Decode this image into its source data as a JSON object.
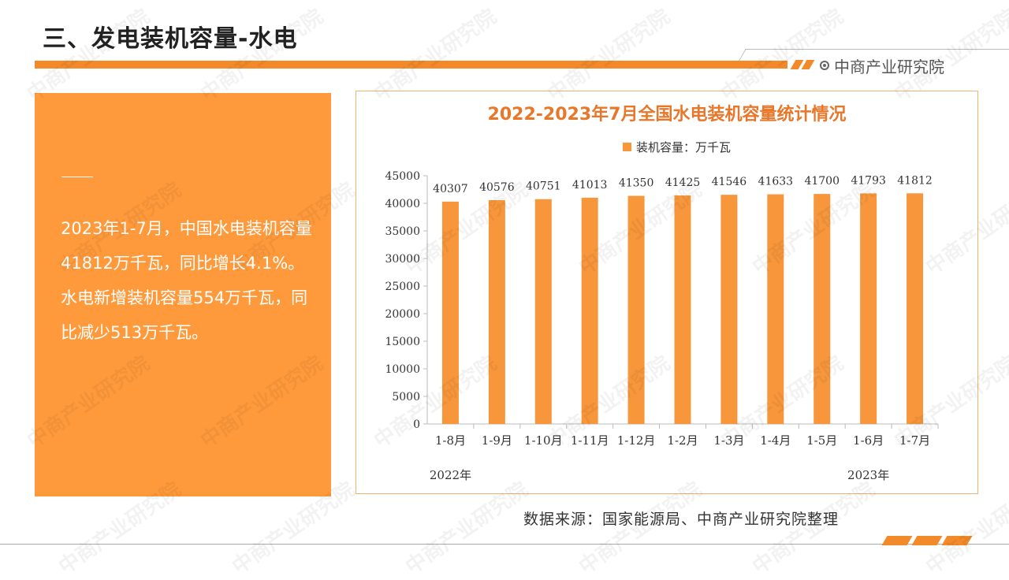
{
  "page": {
    "title": "三、发电装机容量-水电",
    "brand": "中商产业研究院",
    "summary": "2023年1-7月，中国水电装机容量41812万千瓦，同比增长4.1%。水电新增装机容量554万千瓦，同比减少513万千瓦。",
    "source": "数据来源：国家能源局、中商产业研究院整理",
    "watermark": "中商产业研究院"
  },
  "chart_data": {
    "type": "bar",
    "title": "2022-2023年7月全国水电装机容量统计情况",
    "legend": "装机容量：万千瓦",
    "categories": [
      "1-8月",
      "1-9月",
      "1-10月",
      "1-11月",
      "1-12月",
      "1-2月",
      "1-3月",
      "1-4月",
      "1-5月",
      "1-6月",
      "1-7月"
    ],
    "values": [
      40307,
      40576,
      40751,
      41013,
      41350,
      41425,
      41546,
      41633,
      41700,
      41793,
      41812
    ],
    "year_labels": [
      "2022年",
      "2023年"
    ],
    "ylim": [
      0,
      45000
    ],
    "yticks": [
      0,
      5000,
      10000,
      15000,
      20000,
      25000,
      30000,
      35000,
      40000,
      45000
    ],
    "color": "#f7963b",
    "legend_position": "top",
    "grid": false
  }
}
